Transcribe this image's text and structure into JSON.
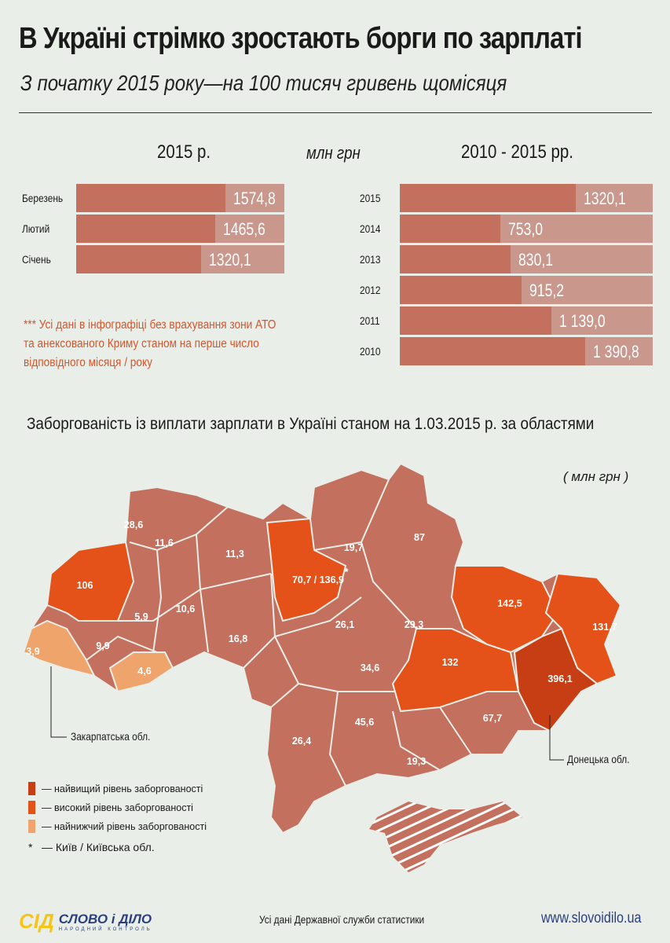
{
  "header": {
    "title": "В Україні стрімко зростають борги по зарплаті",
    "subtitle": "З початку 2015 року—на 100 тисяч гривень щомісяця"
  },
  "unit_label": "млн грн",
  "colors": {
    "bar_dark": "#c4705e",
    "bar_light": "#c9978c",
    "region_base": "#c4705e",
    "highest": "#c73e14",
    "high": "#e4521a",
    "lowest": "#eea46a",
    "note": "#d8542a",
    "logo_yellow": "#f5c518",
    "logo_blue": "#2a3f7e"
  },
  "chart_data": [
    {
      "type": "bar",
      "orientation": "horizontal",
      "title": "2015 р.",
      "categories": [
        "Березень",
        "Лютий",
        "Січень"
      ],
      "values": [
        1574.8,
        1465.6,
        1320.1
      ],
      "value_labels": [
        "1574,8",
        "1465,6",
        "1320,1"
      ],
      "unit": "млн грн"
    },
    {
      "type": "bar",
      "orientation": "horizontal",
      "title": "2010 - 2015 рр.",
      "categories": [
        "2015",
        "2014",
        "2013",
        "2012",
        "2011",
        "2010"
      ],
      "values": [
        1320.1,
        753.0,
        830.1,
        915.2,
        1139.0,
        1390.8
      ],
      "value_labels": [
        "1320,1",
        "753,0",
        "830,1",
        "915,2",
        "1 139,0",
        "1 390,8"
      ],
      "unit": "млн грн"
    }
  ],
  "note": "*** Усі дані в інфографіці без врахування зони АТО та анексованого Криму станом на перше число відповідного місяця / року",
  "map": {
    "title": "Заборгованість із виплати зарплати в Україні станом на 1.03.2015 р. за областями",
    "unit": "( млн грн )",
    "regions": [
      {
        "label": "28,6",
        "level": "base"
      },
      {
        "label": "11,6",
        "level": "base"
      },
      {
        "label": "11,3",
        "level": "base"
      },
      {
        "label": "19,7",
        "level": "base"
      },
      {
        "label": "87",
        "level": "base"
      },
      {
        "label": "106",
        "level": "high"
      },
      {
        "label": "70,7 / 136,9",
        "level": "high",
        "marker": "*"
      },
      {
        "label": "5,9",
        "level": "base"
      },
      {
        "label": "10,6",
        "level": "base"
      },
      {
        "label": "26,1",
        "level": "base"
      },
      {
        "label": "29,3",
        "level": "base"
      },
      {
        "label": "142,5",
        "level": "high"
      },
      {
        "label": "131,7",
        "level": "high"
      },
      {
        "label": "3,9",
        "level": "lowest"
      },
      {
        "label": "9,9",
        "level": "base"
      },
      {
        "label": "4,6",
        "level": "lowest"
      },
      {
        "label": "16,8",
        "level": "base"
      },
      {
        "label": "34,6",
        "level": "base"
      },
      {
        "label": "132",
        "level": "high"
      },
      {
        "label": "396,1",
        "level": "highest"
      },
      {
        "label": "45,6",
        "level": "base"
      },
      {
        "label": "26,4",
        "level": "base"
      },
      {
        "label": "67,7",
        "level": "base"
      },
      {
        "label": "19,3",
        "level": "base"
      }
    ],
    "callouts": {
      "zakarpattia": "Закарпатська обл.",
      "donetsk": "Донецька обл."
    },
    "legend": [
      {
        "label": "— найвищий рівень заборгованості",
        "color": "#c73e14"
      },
      {
        "label": "— високий рівень заборгованості",
        "color": "#e4521a"
      },
      {
        "label": "— найнижчий рівень заборгованості",
        "color": "#eea46a"
      }
    ],
    "legend_star": {
      "symbol": "*",
      "label": "— Київ / Київська обл."
    }
  },
  "footer": {
    "logo_mark": "СІД",
    "logo_name": "СЛОВО і ДІЛО",
    "logo_tagline": "НАРОДНИЙ КОНТРОЛЬ",
    "source": "Усі дані Державної служби статистики",
    "url": "www.slovoidilo.ua"
  }
}
